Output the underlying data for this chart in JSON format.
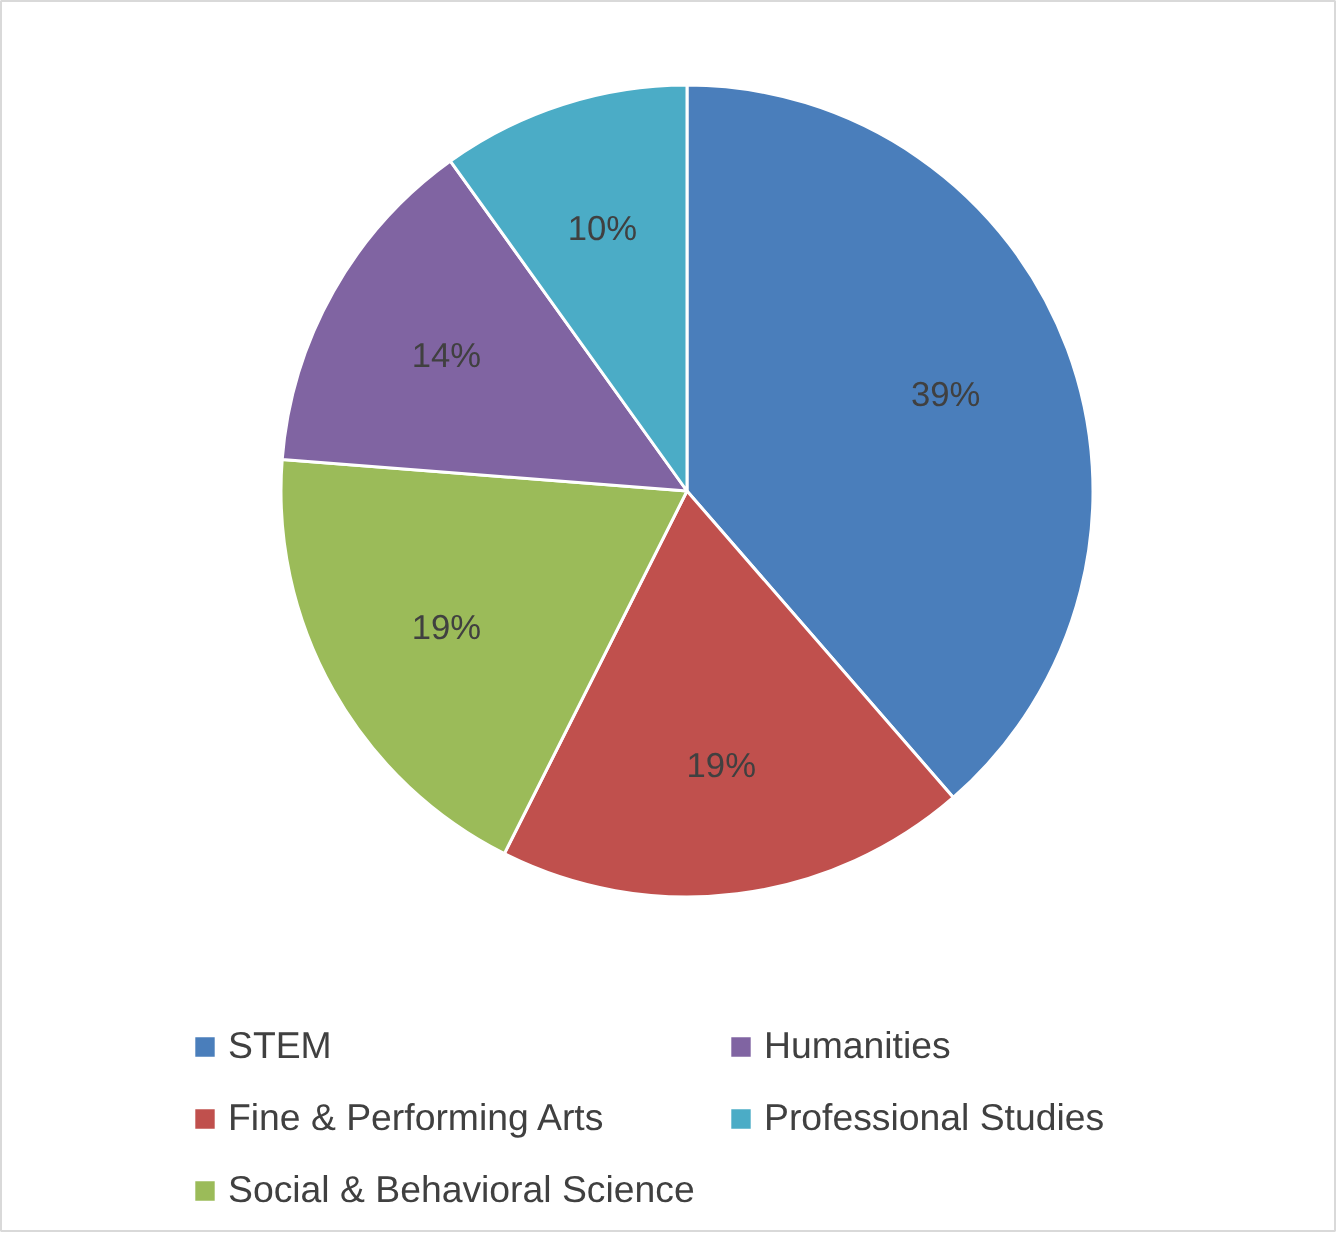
{
  "chart_data": {
    "type": "pie",
    "categories": [
      "STEM",
      "Fine & Performing Arts",
      "Social & Behavioral Science",
      "Humanities",
      "Professional Studies"
    ],
    "values": [
      39,
      19,
      19,
      14,
      10
    ],
    "colors": [
      "#4a7ebb",
      "#c0504d",
      "#9bbb59",
      "#8064a2",
      "#4bacc6"
    ],
    "value_labels": [
      "39%",
      "19%",
      "19%",
      "14%",
      "10%"
    ],
    "legend": "bottom"
  }
}
